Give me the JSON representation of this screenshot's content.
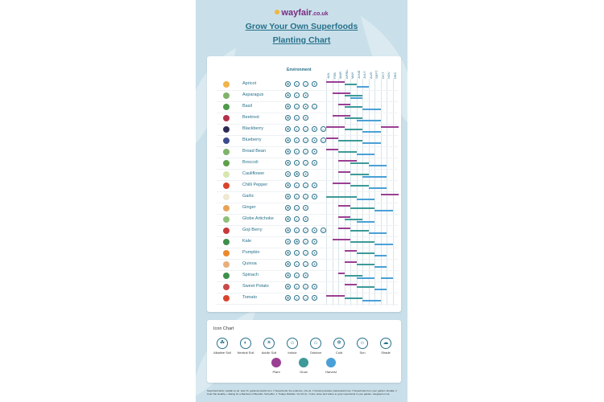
{
  "brand": {
    "name": "wayfair",
    "tld": ".co.uk"
  },
  "title_line1": "Grow Your Own Superfoods",
  "title_line2": "Planting Chart",
  "chart": {
    "environment_header": "Environment",
    "months": [
      "JAN",
      "FEB",
      "MAR",
      "APRIL",
      "MAY",
      "JUNE",
      "JULY",
      "AUG",
      "SEPT",
      "OCT",
      "NOV",
      "DEC"
    ],
    "colors": {
      "plant": "#9b3f93",
      "grow": "#3d9a98",
      "harvest": "#4aa0d6"
    },
    "rows": [
      {
        "name": "Apricot",
        "color": "#f0b44c",
        "env": [
          "☘",
          "◐",
          "⌂",
          "☀"
        ],
        "plant": [
          0,
          3
        ],
        "grow": [
          3,
          5
        ],
        "harvest": [
          5,
          7
        ]
      },
      {
        "name": "Asparagus",
        "color": "#7fb36a",
        "env": [
          "☘",
          "◐",
          "☀"
        ],
        "plant": [
          1,
          4
        ],
        "grow": [
          3,
          6
        ],
        "harvest": [
          4,
          6
        ]
      },
      {
        "name": "Basil",
        "color": "#4e9a4a",
        "env": [
          "☘",
          "⌂",
          "☀",
          "☼"
        ],
        "plant": [
          2,
          4
        ],
        "grow": [
          3,
          6
        ],
        "harvest": [
          6,
          9
        ]
      },
      {
        "name": "Beetroot",
        "color": "#b3304a",
        "env": [
          "☘",
          "◐",
          "☀"
        ],
        "plant": [
          1,
          4
        ],
        "grow": [
          3,
          6
        ],
        "harvest": [
          5,
          9
        ]
      },
      {
        "name": "Blackberry",
        "color": "#2c2a55",
        "env": [
          "☘",
          "◐",
          "⌂",
          "☀",
          "☼"
        ],
        "plant": [
          0,
          3
        ],
        "grow": [
          3,
          6
        ],
        "harvest": [
          6,
          9
        ],
        "plant2": [
          9,
          12
        ]
      },
      {
        "name": "Blueberry",
        "color": "#3b4c8c",
        "env": [
          "☘",
          "◐",
          "⌂",
          "☀",
          "☼"
        ],
        "plant": [
          0,
          2
        ],
        "grow": [
          2,
          6
        ],
        "harvest": [
          6,
          9
        ]
      },
      {
        "name": "Broad Bean",
        "color": "#7fb36a",
        "env": [
          "☘",
          "◐",
          "⌂",
          "☀"
        ],
        "plant": [
          0,
          2
        ],
        "grow": [
          2,
          5
        ],
        "harvest": [
          5,
          8
        ]
      },
      {
        "name": "Broccoli",
        "color": "#5fa04a",
        "env": [
          "☘",
          "◐",
          "⌂",
          "☀"
        ],
        "plant": [
          2,
          5
        ],
        "grow": [
          4,
          7
        ],
        "harvest": [
          7,
          10
        ]
      },
      {
        "name": "Cauliflower",
        "color": "#d6e6b0",
        "env": [
          "❄",
          "☘",
          "☀"
        ],
        "plant": [
          2,
          4
        ],
        "grow": [
          4,
          7
        ],
        "harvest": [
          6,
          10
        ]
      },
      {
        "name": "Chilli Pepper",
        "color": "#d9442e",
        "env": [
          "☘",
          "◐",
          "⌂",
          "☀"
        ],
        "plant": [
          1,
          4
        ],
        "grow": [
          4,
          7
        ],
        "harvest": [
          7,
          10
        ]
      },
      {
        "name": "Garlic",
        "color": "#efe9d2",
        "env": [
          "☘",
          "◐",
          "⌂",
          "☀"
        ],
        "plant": [
          9,
          12
        ],
        "grow": [
          0,
          5
        ],
        "harvest": [
          5,
          8
        ]
      },
      {
        "name": "Ginger",
        "color": "#e6a35a",
        "env": [
          "☘",
          "⌂",
          "☀"
        ],
        "plant": [
          2,
          4
        ],
        "grow": [
          4,
          8
        ],
        "harvest": [
          8,
          11
        ]
      },
      {
        "name": "Globe Artichoke",
        "color": "#8fc07a",
        "env": [
          "☘",
          "◐",
          "☀"
        ],
        "plant": [
          2,
          4
        ],
        "grow": [
          3,
          6
        ],
        "harvest": [
          5,
          8
        ]
      },
      {
        "name": "Goji Berry",
        "color": "#c73b3b",
        "env": [
          "☘",
          "◐",
          "⌂",
          "☀",
          "☼"
        ],
        "plant": [
          2,
          4
        ],
        "grow": [
          4,
          7
        ],
        "harvest": [
          7,
          10
        ]
      },
      {
        "name": "Kale",
        "color": "#3f8f4a",
        "env": [
          "❄",
          "☘",
          "⌂",
          "☀"
        ],
        "plant": [
          1,
          4
        ],
        "grow": [
          4,
          8
        ],
        "harvest": [
          8,
          11
        ]
      },
      {
        "name": "Pumpkin",
        "color": "#ea8a2e",
        "env": [
          "☘",
          "◐",
          "⌂",
          "☀"
        ],
        "plant": [
          3,
          5
        ],
        "grow": [
          5,
          8
        ],
        "harvest": [
          8,
          10
        ]
      },
      {
        "name": "Quinoa",
        "color": "#e8b07a",
        "env": [
          "☘",
          "◐",
          "⌂",
          "☀"
        ],
        "plant": [
          3,
          5
        ],
        "grow": [
          5,
          8
        ],
        "harvest": [
          8,
          10
        ]
      },
      {
        "name": "Spinach",
        "color": "#3f8f4a",
        "env": [
          "☘",
          "◐",
          "☀"
        ],
        "plant": [
          2,
          3
        ],
        "grow": [
          3,
          6
        ],
        "harvest": [
          5,
          8
        ],
        "harvest2": [
          9,
          11
        ]
      },
      {
        "name": "Sweet Potato",
        "color": "#c94a4a",
        "env": [
          "☘",
          "◐",
          "⌂",
          "☀"
        ],
        "plant": [
          3,
          5
        ],
        "grow": [
          5,
          8
        ],
        "harvest": [
          8,
          10
        ]
      },
      {
        "name": "Tomato",
        "color": "#d9442e",
        "env": [
          "☘",
          "◐",
          "⌂",
          "☀"
        ],
        "plant": [
          0,
          3
        ],
        "grow": [
          3,
          6
        ],
        "harvest": [
          6,
          9
        ]
      }
    ]
  },
  "icon_chart": {
    "title": "Icon Chart",
    "icons": [
      {
        "label": "Alkaline Soil",
        "glyph": "☘"
      },
      {
        "label": "Neutral Soil",
        "glyph": "◐"
      },
      {
        "label": "Acidic Soil",
        "glyph": "☀"
      },
      {
        "label": "Indoor",
        "glyph": "⌂"
      },
      {
        "label": "Outdoor",
        "glyph": "⌂"
      },
      {
        "label": "Cold",
        "glyph": "❄"
      },
      {
        "label": "Sun",
        "glyph": "☼"
      },
      {
        "label": "Shade",
        "glyph": "☁"
      }
    ],
    "legend": [
      {
        "label": "Plant",
        "color": "#9b3f93"
      },
      {
        "label": "Grow",
        "color": "#3d9a98"
      },
      {
        "label": "Harvest",
        "color": "#4aa0d6"
      }
    ]
  },
  "footer": "Superfood facts: wayfair.co.uk. How To: gardenersworld.com. // Superfoods: the evidence. nhs.uk. // Growing Guides: plantandsoil.com // Superfoods from your garden. Rodale, // Color Me Healthy + Eating for a Rainbow of Benefits. Schoeffer, J. Todays Dietitian. Vol 10 (1). // How, when and where to grow superfoods in your garden. telegraph.co.uk."
}
